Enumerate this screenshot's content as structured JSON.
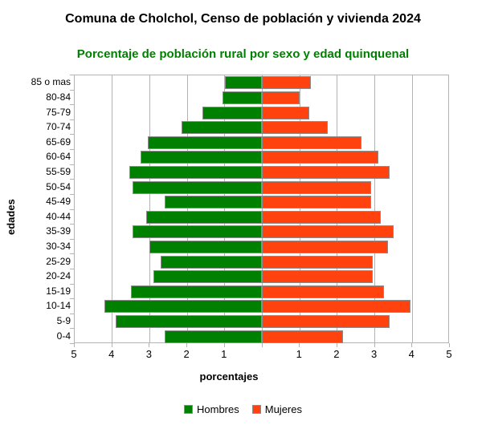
{
  "header": {
    "title": "Comuna de Cholchol, Censo de población y vivienda 2024",
    "subtitle": "Porcentaje de población rural por sexo y edad quinquenal"
  },
  "colors": {
    "hombres": "#008000",
    "mujeres": "#FF420E",
    "subtitle_text": "#008000",
    "bar_border": "#8c8c8c",
    "grid": "#b3b3b3",
    "tick": "#b3b3b3"
  },
  "legend": {
    "items": [
      {
        "label": "Hombres",
        "color": "#008000"
      },
      {
        "label": "Mujeres",
        "color": "#FF420E"
      }
    ]
  },
  "chart_data": {
    "type": "bar",
    "subtype": "population-pyramid-horizontal",
    "title": "Comuna de Cholchol, Censo de población y vivienda 2024",
    "subtitle": "Porcentaje de población rural por sexo y edad quinquenal",
    "xlabel": "porcentajes",
    "ylabel": "edades",
    "categories_top_to_bottom": [
      "85 o mas",
      "80-84",
      "75-79",
      "70-74",
      "65-69",
      "60-64",
      "55-59",
      "50-54",
      "45-49",
      "40-44",
      "35-39",
      "30-34",
      "25-29",
      "20-24",
      "15-19",
      "10-14",
      "5-9",
      "0-4"
    ],
    "series": [
      {
        "name": "Hombres",
        "side": "left",
        "color": "#008000",
        "values": [
          1.0,
          1.05,
          1.6,
          2.15,
          3.05,
          3.25,
          3.55,
          3.45,
          2.6,
          3.1,
          3.45,
          3.0,
          2.7,
          2.9,
          3.5,
          4.2,
          3.9,
          2.6
        ]
      },
      {
        "name": "Mujeres",
        "side": "right",
        "color": "#FF420E",
        "values": [
          1.3,
          1.0,
          1.25,
          1.75,
          2.65,
          3.1,
          3.4,
          2.9,
          2.9,
          3.15,
          3.5,
          3.35,
          2.95,
          2.95,
          3.25,
          3.95,
          3.4,
          2.15
        ]
      }
    ],
    "x_axis": {
      "tick_labels": [
        "5",
        "4",
        "3",
        "2",
        "1",
        "",
        "1",
        "2",
        "3",
        "4",
        "5"
      ],
      "units_per_side": 5,
      "grid": true,
      "legend_position": "bottom"
    }
  }
}
